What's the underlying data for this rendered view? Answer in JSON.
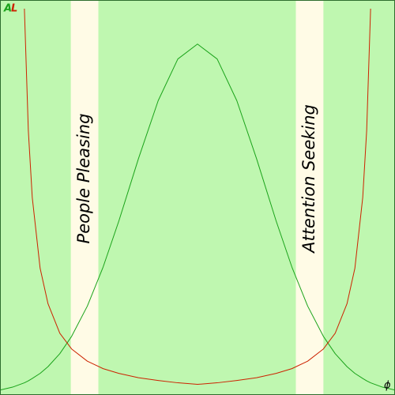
{
  "chart_data": {
    "type": "line",
    "x": [
      0,
      3,
      6,
      7,
      8,
      10,
      12,
      15,
      18,
      22,
      26,
      30,
      35,
      40,
      45,
      50,
      55,
      60,
      65,
      70,
      74,
      78,
      82,
      85,
      88,
      90,
      92,
      93,
      94,
      97,
      100
    ],
    "series": [
      {
        "name": "A",
        "color": "#1aa31a",
        "values": [
          1.1,
          1.8,
          2.9,
          3.4,
          4.0,
          5.3,
          7.0,
          10.3,
          14.7,
          22.4,
          32.3,
          44.0,
          59.9,
          74.6,
          85.2,
          89,
          85.2,
          74.6,
          59.9,
          44.0,
          32.3,
          22.4,
          14.7,
          10.3,
          7.0,
          5.3,
          4.0,
          3.4,
          2.9,
          1.8,
          1.1
        ]
      },
      {
        "name": "L",
        "color": "#cc2200",
        "values": [
          null,
          null,
          98,
          67,
          50,
          32,
          23,
          15.5,
          11.5,
          8.4,
          6.5,
          5.3,
          4.2,
          3.5,
          2.9,
          2.5,
          2.9,
          3.5,
          4.2,
          5.3,
          6.5,
          8.4,
          11.5,
          15.5,
          23,
          32,
          50,
          67,
          98,
          null,
          null
        ]
      }
    ],
    "bands": [
      {
        "label": "People Pleasing",
        "xrange": [
          17.8,
          24.8
        ],
        "color": "#fffbe6"
      },
      {
        "label": "Attention Seeking",
        "xrange": [
          75,
          82
        ],
        "color": "#fffbe6"
      }
    ],
    "xlabel": "ϕ",
    "xlim": [
      0,
      100
    ],
    "ylim": [
      0,
      100
    ],
    "background": "#bff7b0"
  }
}
